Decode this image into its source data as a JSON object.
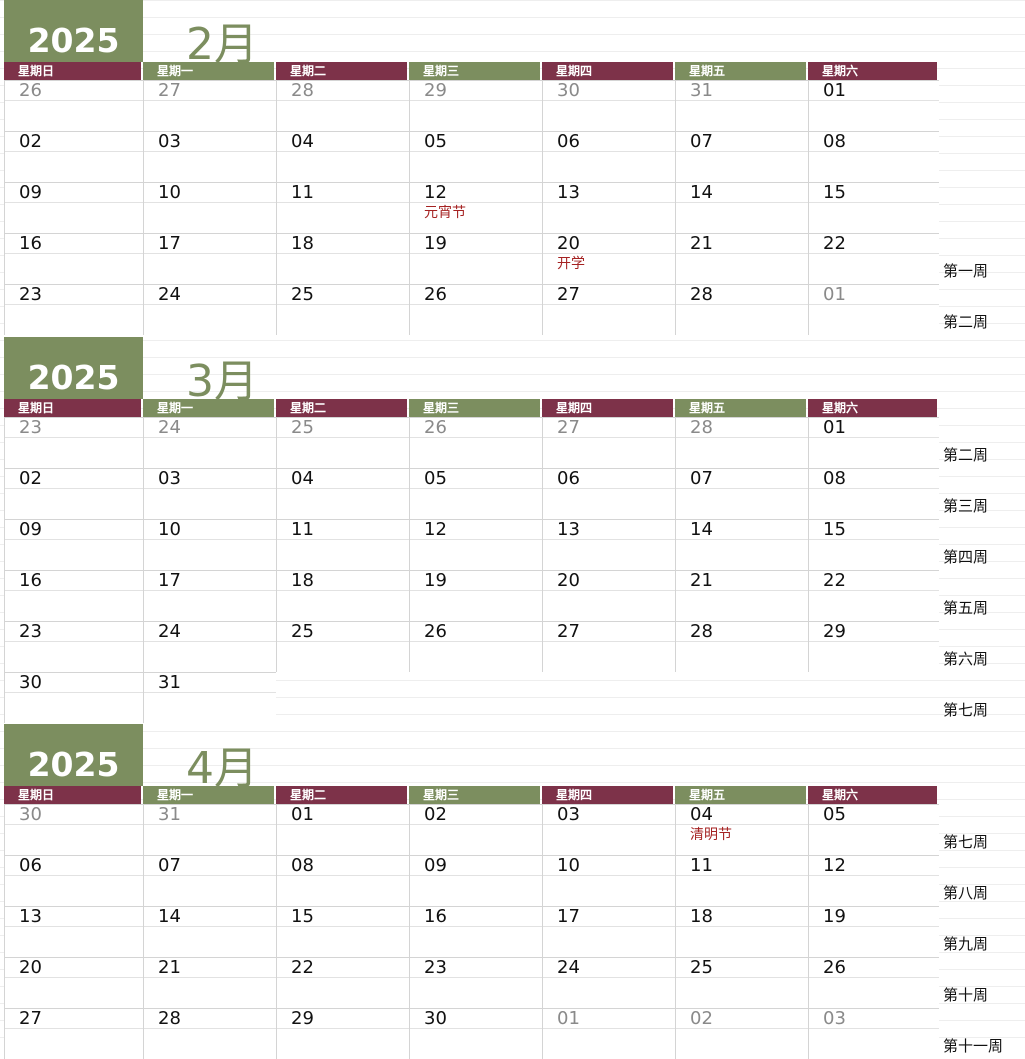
{
  "weekday_headers": [
    "星期日",
    "星期一",
    "星期二",
    "星期三",
    "星期四",
    "星期五",
    "星期六"
  ],
  "colors": {
    "olive": "#7c8e5f",
    "wine": "#7d3249",
    "holiday": "#a52222",
    "muted": "#8a8a8a"
  },
  "months": [
    {
      "year": "2025",
      "month_label": "2月",
      "rows": [
        [
          {
            "d": "26",
            "o": true
          },
          {
            "d": "27",
            "o": true
          },
          {
            "d": "28",
            "o": true
          },
          {
            "d": "29",
            "o": true
          },
          {
            "d": "30",
            "o": true
          },
          {
            "d": "31",
            "o": true
          },
          {
            "d": "01",
            "o": false
          }
        ],
        [
          {
            "d": "02",
            "o": false
          },
          {
            "d": "03",
            "o": false
          },
          {
            "d": "04",
            "o": false
          },
          {
            "d": "05",
            "o": false
          },
          {
            "d": "06",
            "o": false
          },
          {
            "d": "07",
            "o": false
          },
          {
            "d": "08",
            "o": false
          }
        ],
        [
          {
            "d": "09",
            "o": false
          },
          {
            "d": "10",
            "o": false
          },
          {
            "d": "11",
            "o": false
          },
          {
            "d": "12",
            "o": false,
            "e": "元宵节"
          },
          {
            "d": "13",
            "o": false
          },
          {
            "d": "14",
            "o": false
          },
          {
            "d": "15",
            "o": false
          }
        ],
        [
          {
            "d": "16",
            "o": false
          },
          {
            "d": "17",
            "o": false
          },
          {
            "d": "18",
            "o": false
          },
          {
            "d": "19",
            "o": false
          },
          {
            "d": "20",
            "o": false,
            "e": "开学"
          },
          {
            "d": "21",
            "o": false
          },
          {
            "d": "22",
            "o": false
          }
        ],
        [
          {
            "d": "23",
            "o": false
          },
          {
            "d": "24",
            "o": false
          },
          {
            "d": "25",
            "o": false
          },
          {
            "d": "26",
            "o": false
          },
          {
            "d": "27",
            "o": false
          },
          {
            "d": "28",
            "o": false
          },
          {
            "d": "01",
            "o": true
          }
        ]
      ],
      "weeks": [
        "",
        "",
        "",
        "第一周",
        "第二周"
      ]
    },
    {
      "year": "2025",
      "month_label": "3月",
      "rows": [
        [
          {
            "d": "23",
            "o": true
          },
          {
            "d": "24",
            "o": true
          },
          {
            "d": "25",
            "o": true
          },
          {
            "d": "26",
            "o": true
          },
          {
            "d": "27",
            "o": true
          },
          {
            "d": "28",
            "o": true
          },
          {
            "d": "01",
            "o": false
          }
        ],
        [
          {
            "d": "02",
            "o": false
          },
          {
            "d": "03",
            "o": false
          },
          {
            "d": "04",
            "o": false
          },
          {
            "d": "05",
            "o": false
          },
          {
            "d": "06",
            "o": false
          },
          {
            "d": "07",
            "o": false
          },
          {
            "d": "08",
            "o": false
          }
        ],
        [
          {
            "d": "09",
            "o": false
          },
          {
            "d": "10",
            "o": false
          },
          {
            "d": "11",
            "o": false
          },
          {
            "d": "12",
            "o": false
          },
          {
            "d": "13",
            "o": false
          },
          {
            "d": "14",
            "o": false
          },
          {
            "d": "15",
            "o": false
          }
        ],
        [
          {
            "d": "16",
            "o": false
          },
          {
            "d": "17",
            "o": false
          },
          {
            "d": "18",
            "o": false
          },
          {
            "d": "19",
            "o": false
          },
          {
            "d": "20",
            "o": false
          },
          {
            "d": "21",
            "o": false
          },
          {
            "d": "22",
            "o": false
          }
        ],
        [
          {
            "d": "23",
            "o": false
          },
          {
            "d": "24",
            "o": false
          },
          {
            "d": "25",
            "o": false
          },
          {
            "d": "26",
            "o": false
          },
          {
            "d": "27",
            "o": false
          },
          {
            "d": "28",
            "o": false
          },
          {
            "d": "29",
            "o": false
          }
        ],
        [
          {
            "d": "30",
            "o": false
          },
          {
            "d": "31",
            "o": false
          }
        ]
      ],
      "weeks": [
        "第二周",
        "第三周",
        "第四周",
        "第五周",
        "第六周",
        "第七周"
      ]
    },
    {
      "year": "2025",
      "month_label": "4月",
      "rows": [
        [
          {
            "d": "30",
            "o": true
          },
          {
            "d": "31",
            "o": true
          },
          {
            "d": "01",
            "o": false
          },
          {
            "d": "02",
            "o": false
          },
          {
            "d": "03",
            "o": false
          },
          {
            "d": "04",
            "o": false,
            "e": "清明节"
          },
          {
            "d": "05",
            "o": false
          }
        ],
        [
          {
            "d": "06",
            "o": false
          },
          {
            "d": "07",
            "o": false
          },
          {
            "d": "08",
            "o": false
          },
          {
            "d": "09",
            "o": false
          },
          {
            "d": "10",
            "o": false
          },
          {
            "d": "11",
            "o": false
          },
          {
            "d": "12",
            "o": false
          }
        ],
        [
          {
            "d": "13",
            "o": false
          },
          {
            "d": "14",
            "o": false
          },
          {
            "d": "15",
            "o": false
          },
          {
            "d": "16",
            "o": false
          },
          {
            "d": "17",
            "o": false
          },
          {
            "d": "18",
            "o": false
          },
          {
            "d": "19",
            "o": false
          }
        ],
        [
          {
            "d": "20",
            "o": false
          },
          {
            "d": "21",
            "o": false
          },
          {
            "d": "22",
            "o": false
          },
          {
            "d": "23",
            "o": false
          },
          {
            "d": "24",
            "o": false
          },
          {
            "d": "25",
            "o": false
          },
          {
            "d": "26",
            "o": false
          }
        ],
        [
          {
            "d": "27",
            "o": false
          },
          {
            "d": "28",
            "o": false
          },
          {
            "d": "29",
            "o": false
          },
          {
            "d": "30",
            "o": false
          },
          {
            "d": "01",
            "o": true
          },
          {
            "d": "02",
            "o": true
          },
          {
            "d": "03",
            "o": true
          }
        ]
      ],
      "weeks": [
        "第七周",
        "第八周",
        "第九周",
        "第十周",
        "第十一周"
      ]
    }
  ]
}
